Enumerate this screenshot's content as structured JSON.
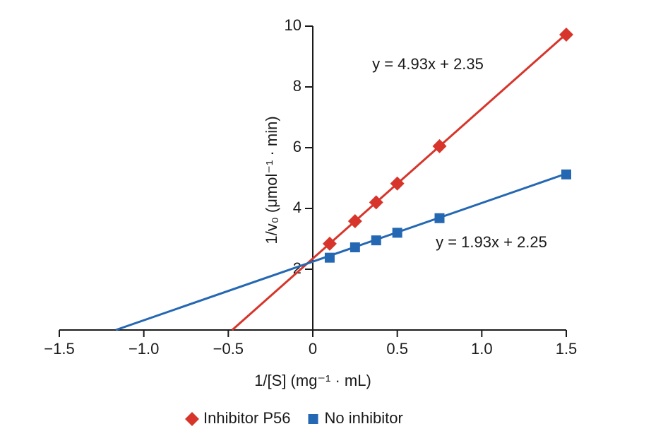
{
  "chart_data": {
    "type": "scatter",
    "x_label": "1/[S] (mg⁻¹ · mL)",
    "y_label": "1/v₀ (μmol⁻¹ · min)",
    "annotations": [
      "y = 4.93x + 2.35",
      "y = 1.93x + 2.25"
    ],
    "x": [
      0.1,
      0.25,
      0.375,
      0.5,
      0.75,
      1.5
    ],
    "series": [
      {
        "name": "Inhibitor P56",
        "color": "#d7352b",
        "marker": "diamond",
        "values": [
          2.84,
          3.58,
          4.2,
          4.82,
          6.05,
          9.72
        ],
        "fit_x": [
          -0.477,
          1.5
        ],
        "fit_values": [
          0,
          9.745
        ]
      },
      {
        "name": "No inhibitor",
        "color": "#2467b2",
        "marker": "square",
        "values": [
          2.38,
          2.72,
          2.95,
          3.2,
          3.68,
          5.12
        ],
        "fit_x": [
          -1.166,
          1.5
        ],
        "fit_values": [
          0,
          5.145
        ]
      }
    ],
    "xlim": [
      -1.5,
      1.5
    ],
    "xticks": [
      {
        "value": -1.5,
        "label": "−1.5"
      },
      {
        "value": -1.0,
        "label": "−1.0"
      },
      {
        "value": -0.5,
        "label": "−0.5"
      },
      0,
      0.5,
      {
        "value": 1.0,
        "label": "1.0"
      },
      1.5
    ],
    "ylim": [
      0,
      10
    ],
    "yticks": [
      2,
      4,
      6,
      8,
      10
    ],
    "grid": false,
    "legend": "bottom"
  }
}
